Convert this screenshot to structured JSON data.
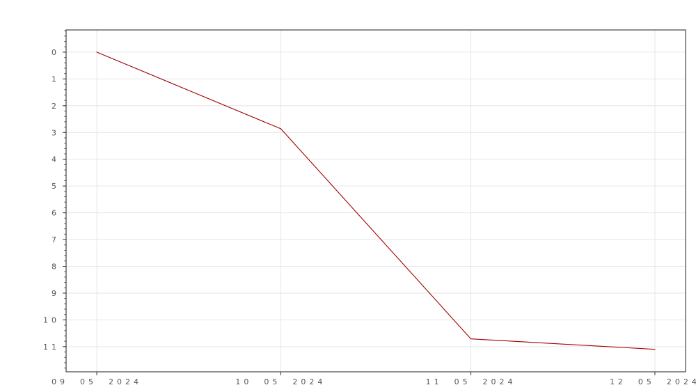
{
  "chart_data": {
    "type": "line",
    "title": "",
    "xlabel": "",
    "ylabel": "",
    "x_tick_labels": [
      "09 05 2024",
      "10 05 2024",
      "11 05 2024",
      "12 05 2024"
    ],
    "x": [
      "2024-09-05",
      "2024-10-05",
      "2024-11-05",
      "2024-12-05"
    ],
    "series": [
      {
        "values": [
          0,
          2.86,
          10.71,
          11.1
        ],
        "color": "#a00000"
      }
    ],
    "xlim": [
      "2024-08-31",
      "2024-12-10"
    ],
    "ylim": [
      -0.83,
      11.94
    ],
    "y_inverted": true,
    "y_ticks": [
      0,
      1,
      2,
      3,
      4,
      5,
      6,
      7,
      8,
      9,
      10,
      11
    ],
    "y_tick_labels": [
      "0",
      "1",
      "2",
      "3",
      "4",
      "5",
      "6",
      "7",
      "8",
      "9",
      "10",
      "11"
    ],
    "y_minor_step": 0.2,
    "grid": true,
    "legend": "none"
  }
}
